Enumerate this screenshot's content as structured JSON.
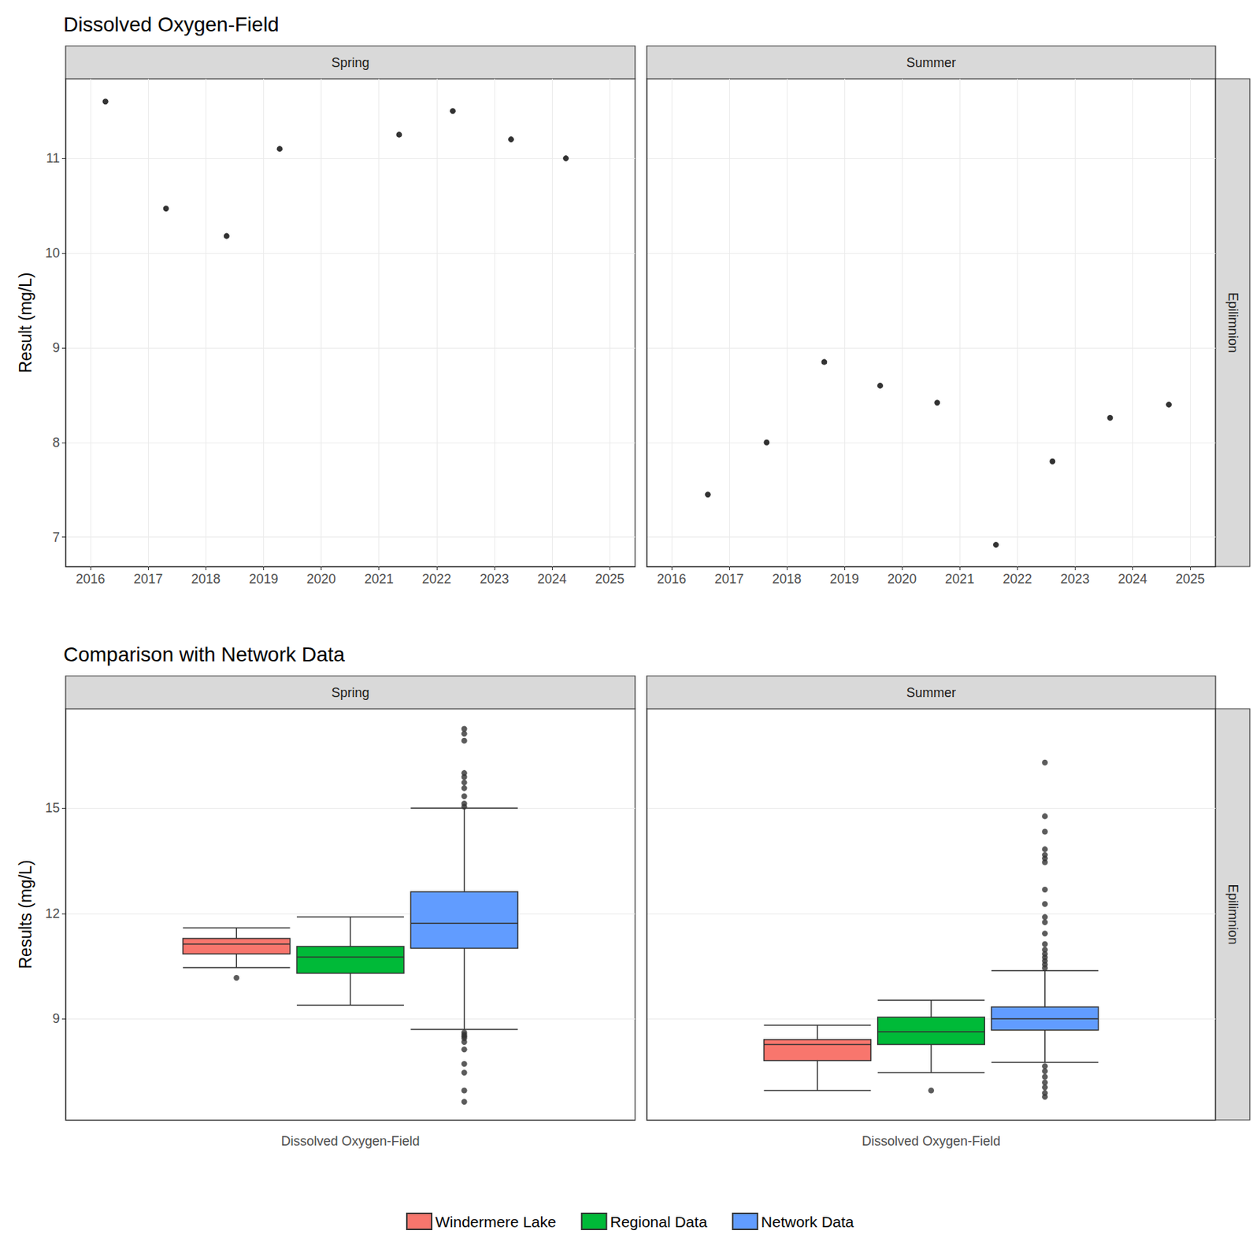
{
  "chart_data": [
    {
      "type": "scatter",
      "title": "Dissolved Oxygen-Field",
      "y_label": "Result (mg/L)",
      "facets": [
        "Spring",
        "Summer"
      ],
      "facet_row": "Epilimnion",
      "color": "#000000",
      "x": [
        [
          2016.26,
          2017.31,
          2018.36,
          2019.28,
          2021.35,
          2022.28,
          2023.29,
          2024.24
        ],
        [
          2016.63,
          2017.65,
          2018.65,
          2019.62,
          2020.61,
          2021.63,
          2022.61,
          2023.61,
          2024.63
        ]
      ],
      "values": [
        [
          11.6,
          10.47,
          10.18,
          11.1,
          11.25,
          11.5,
          11.2,
          11.0
        ],
        [
          7.45,
          8.0,
          8.85,
          8.6,
          8.42,
          6.92,
          7.8,
          8.26,
          8.4
        ]
      ],
      "xlim": [
        2015.57,
        2025.44
      ],
      "xticks": [
        2016,
        2017,
        2018,
        2019,
        2020,
        2021,
        2022,
        2023,
        2024,
        2025
      ],
      "ylim": [
        6.69,
        11.84
      ],
      "yticks": [
        7,
        8,
        9,
        10,
        11
      ],
      "grid": true
    },
    {
      "type": "boxplot",
      "title": "Comparison with Network Data",
      "y_label": "Results (mg/L)",
      "facets": [
        "Spring",
        "Summer"
      ],
      "facet_row": "Epilimnion",
      "categories": [
        "Dissolved Oxygen-Field"
      ],
      "ylim": [
        6.12,
        17.83
      ],
      "yticks": [
        9,
        12,
        15
      ],
      "grid": true,
      "legend": "bottom",
      "series": [
        {
          "name": "Windermere Lake",
          "color": "#F8766D",
          "values": [
            {
              "min": 10.46,
              "q1": 10.85,
              "median": 11.13,
              "q3": 11.29,
              "max": 11.59,
              "outliers": [
                10.17
              ]
            },
            {
              "min": 6.96,
              "q1": 7.81,
              "median": 8.27,
              "q3": 8.41,
              "max": 8.82,
              "outliers": []
            }
          ]
        },
        {
          "name": "Regional Data",
          "color": "#00BA38",
          "values": [
            {
              "min": 9.39,
              "q1": 10.3,
              "median": 10.76,
              "q3": 11.06,
              "max": 11.9,
              "outliers": []
            },
            {
              "min": 7.47,
              "q1": 8.27,
              "median": 8.63,
              "q3": 9.05,
              "max": 9.53,
              "outliers": [
                6.96
              ]
            }
          ]
        },
        {
          "name": "Network Data",
          "color": "#619CFF",
          "values": [
            {
              "min": 8.7,
              "q1": 11.01,
              "median": 11.72,
              "q3": 12.62,
              "max": 15.0,
              "outliers": [
                15.04,
                15.13,
                15.34,
                15.57,
                15.73,
                15.89,
                16.0,
                16.92,
                17.12,
                17.26,
                8.61,
                8.55,
                8.5,
                8.45,
                8.34,
                8.13,
                7.72,
                7.47,
                6.96,
                6.64
              ]
            },
            {
              "min": 7.76,
              "q1": 8.68,
              "median": 9.0,
              "q3": 9.34,
              "max": 10.37,
              "outliers": [
                10.45,
                10.55,
                10.65,
                10.75,
                10.85,
                10.97,
                11.13,
                11.43,
                11.75,
                11.9,
                12.27,
                12.68,
                13.46,
                13.57,
                13.67,
                13.83,
                14.33,
                14.77,
                16.3,
                7.65,
                7.51,
                7.35,
                7.19,
                7.05,
                6.89,
                6.78
              ]
            }
          ]
        }
      ]
    }
  ]
}
